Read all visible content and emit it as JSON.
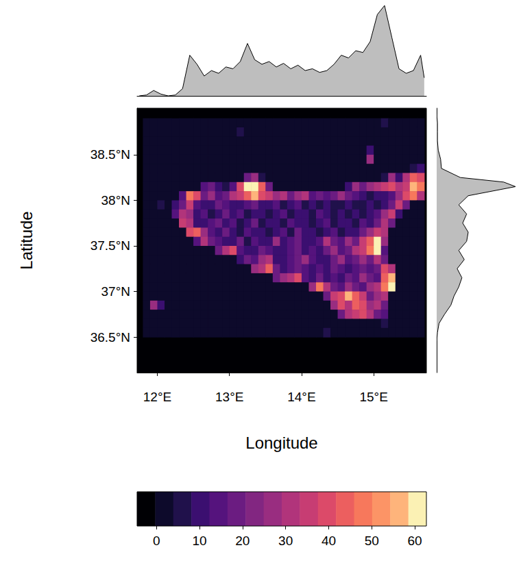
{
  "chart_data": {
    "type": "heatmap",
    "xlabel": "Longitude",
    "ylabel": "Latitude",
    "xlim": [
      11.72,
      15.73
    ],
    "ylim": [
      36.11,
      39.01
    ],
    "xticks": [
      {
        "value": 12,
        "label": "12°E"
      },
      {
        "value": 13,
        "label": "13°E"
      },
      {
        "value": 14,
        "label": "14°E"
      },
      {
        "value": 15,
        "label": "15°E"
      }
    ],
    "yticks": [
      {
        "value": 36.5,
        "label": "36.5°N"
      },
      {
        "value": 37,
        "label": "37°N"
      },
      {
        "value": 37.5,
        "label": "37.5°N"
      },
      {
        "value": 38,
        "label": "38°N"
      },
      {
        "value": 38.5,
        "label": "38.5°N"
      }
    ],
    "x": [
      11.85,
      11.95,
      12.05,
      12.15,
      12.25,
      12.35,
      12.45,
      12.55,
      12.65,
      12.75,
      12.85,
      12.95,
      13.05,
      13.15,
      13.25,
      13.35,
      13.45,
      13.55,
      13.65,
      13.75,
      13.85,
      13.95,
      14.05,
      14.15,
      14.25,
      14.35,
      14.45,
      14.55,
      14.65,
      14.75,
      14.85,
      14.95,
      15.05,
      15.15,
      15.25,
      15.35,
      15.45,
      15.55,
      15.65
    ],
    "y": [
      38.85,
      38.75,
      38.65,
      38.55,
      38.45,
      38.35,
      38.25,
      38.15,
      38.05,
      37.95,
      37.85,
      37.75,
      37.65,
      37.55,
      37.45,
      37.35,
      37.25,
      37.15,
      37.05,
      36.95,
      36.85,
      36.75,
      36.65,
      36.55
    ],
    "cells": [
      [
        0,
        0,
        0,
        0,
        0,
        0,
        0,
        0,
        0,
        0,
        0,
        0,
        0,
        0,
        0,
        0,
        0,
        0,
        0,
        0,
        0,
        0,
        0,
        0,
        0,
        0,
        0,
        0,
        0,
        0,
        0,
        0,
        0,
        6,
        0,
        0,
        0,
        0,
        0
      ],
      [
        0,
        0,
        0,
        0,
        0,
        0,
        0,
        0,
        0,
        0,
        0,
        0,
        0,
        8,
        0,
        0,
        0,
        0,
        0,
        0,
        0,
        0,
        0,
        0,
        0,
        0,
        0,
        0,
        0,
        0,
        0,
        0,
        0,
        0,
        0,
        0,
        0,
        0,
        0
      ],
      [
        0,
        0,
        0,
        0,
        0,
        0,
        0,
        0,
        0,
        0,
        0,
        0,
        0,
        0,
        0,
        0,
        0,
        0,
        0,
        0,
        0,
        0,
        0,
        0,
        0,
        0,
        0,
        0,
        0,
        0,
        0,
        0,
        0,
        0,
        0,
        0,
        0,
        0,
        0
      ],
      [
        0,
        0,
        0,
        0,
        0,
        0,
        0,
        0,
        0,
        0,
        0,
        0,
        0,
        0,
        0,
        0,
        0,
        0,
        0,
        0,
        0,
        0,
        0,
        0,
        0,
        0,
        0,
        0,
        0,
        0,
        0,
        10,
        0,
        0,
        0,
        0,
        0,
        0,
        0
      ],
      [
        0,
        0,
        0,
        0,
        0,
        0,
        0,
        0,
        0,
        0,
        0,
        0,
        0,
        0,
        0,
        0,
        0,
        0,
        0,
        0,
        0,
        0,
        0,
        0,
        0,
        0,
        0,
        0,
        0,
        0,
        0,
        25,
        0,
        0,
        0,
        0,
        0,
        0,
        0
      ],
      [
        0,
        0,
        0,
        0,
        0,
        0,
        0,
        0,
        0,
        0,
        0,
        0,
        0,
        0,
        0,
        0,
        0,
        0,
        0,
        0,
        0,
        0,
        0,
        0,
        0,
        0,
        0,
        0,
        0,
        0,
        0,
        0,
        0,
        0,
        0,
        0,
        0,
        6,
        12
      ],
      [
        0,
        0,
        0,
        0,
        0,
        0,
        0,
        0,
        0,
        0,
        0,
        0,
        0,
        0,
        20,
        25,
        8,
        0,
        0,
        0,
        0,
        0,
        0,
        0,
        0,
        0,
        0,
        0,
        0,
        0,
        0,
        0,
        0,
        8,
        25,
        10,
        30,
        45,
        40
      ],
      [
        0,
        0,
        0,
        0,
        0,
        0,
        0,
        0,
        15,
        20,
        10,
        5,
        15,
        40,
        60,
        65,
        45,
        20,
        0,
        0,
        0,
        0,
        0,
        0,
        0,
        0,
        0,
        0,
        10,
        25,
        20,
        25,
        30,
        35,
        40,
        30,
        35,
        55,
        50
      ],
      [
        0,
        0,
        0,
        0,
        0,
        15,
        50,
        40,
        20,
        25,
        15,
        20,
        30,
        35,
        45,
        55,
        40,
        35,
        25,
        30,
        20,
        25,
        30,
        15,
        20,
        15,
        20,
        25,
        20,
        15,
        10,
        8,
        12,
        10,
        15,
        25,
        40,
        50,
        30
      ],
      [
        0,
        0,
        5,
        0,
        10,
        20,
        35,
        15,
        10,
        12,
        20,
        15,
        12,
        10,
        15,
        20,
        12,
        10,
        15,
        8,
        12,
        15,
        8,
        10,
        8,
        10,
        6,
        8,
        10,
        8,
        6,
        10,
        8,
        10,
        20,
        35,
        20,
        0,
        0
      ],
      [
        0,
        0,
        0,
        0,
        15,
        30,
        25,
        10,
        15,
        8,
        12,
        20,
        10,
        15,
        8,
        10,
        12,
        6,
        10,
        15,
        8,
        10,
        12,
        8,
        15,
        10,
        8,
        12,
        6,
        10,
        8,
        12,
        15,
        25,
        35,
        10,
        0,
        0,
        0
      ],
      [
        0,
        0,
        0,
        0,
        0,
        35,
        30,
        12,
        10,
        15,
        20,
        10,
        15,
        8,
        10,
        20,
        8,
        12,
        10,
        8,
        15,
        10,
        12,
        6,
        10,
        15,
        8,
        10,
        12,
        8,
        15,
        10,
        20,
        30,
        20,
        0,
        0,
        0,
        0
      ],
      [
        0,
        0,
        0,
        0,
        0,
        0,
        40,
        45,
        25,
        15,
        10,
        20,
        12,
        8,
        15,
        10,
        12,
        8,
        10,
        15,
        8,
        20,
        10,
        12,
        8,
        10,
        15,
        8,
        10,
        12,
        20,
        25,
        35,
        30,
        0,
        0,
        0,
        0,
        0
      ],
      [
        0,
        0,
        0,
        0,
        0,
        0,
        0,
        15,
        30,
        20,
        15,
        10,
        12,
        20,
        8,
        15,
        10,
        12,
        25,
        10,
        15,
        20,
        12,
        10,
        15,
        30,
        20,
        15,
        25,
        20,
        35,
        45,
        60,
        25,
        0,
        0,
        0,
        0,
        0
      ],
      [
        0,
        0,
        0,
        0,
        0,
        0,
        0,
        0,
        0,
        0,
        20,
        30,
        40,
        15,
        12,
        10,
        20,
        15,
        10,
        12,
        15,
        20,
        10,
        15,
        12,
        20,
        25,
        15,
        20,
        30,
        35,
        50,
        65,
        15,
        0,
        0,
        0,
        0,
        0
      ],
      [
        0,
        0,
        0,
        0,
        0,
        0,
        0,
        0,
        0,
        0,
        0,
        0,
        0,
        10,
        20,
        15,
        25,
        30,
        12,
        10,
        15,
        20,
        25,
        15,
        12,
        10,
        20,
        25,
        15,
        20,
        25,
        20,
        30,
        20,
        0,
        0,
        0,
        0,
        0
      ],
      [
        0,
        0,
        0,
        0,
        0,
        0,
        0,
        0,
        0,
        0,
        0,
        0,
        0,
        0,
        0,
        25,
        30,
        45,
        20,
        12,
        15,
        20,
        15,
        10,
        15,
        12,
        20,
        15,
        10,
        15,
        20,
        15,
        20,
        40,
        30,
        0,
        0,
        0,
        0
      ],
      [
        0,
        0,
        0,
        0,
        0,
        0,
        0,
        0,
        0,
        0,
        0,
        0,
        0,
        0,
        0,
        0,
        0,
        0,
        20,
        25,
        30,
        40,
        15,
        10,
        20,
        12,
        15,
        10,
        20,
        15,
        25,
        20,
        15,
        45,
        55,
        0,
        0,
        0,
        0
      ],
      [
        0,
        0,
        0,
        0,
        0,
        0,
        0,
        0,
        0,
        0,
        0,
        0,
        0,
        0,
        0,
        0,
        0,
        0,
        0,
        0,
        0,
        0,
        0,
        25,
        50,
        30,
        20,
        15,
        25,
        20,
        15,
        25,
        30,
        50,
        60,
        0,
        0,
        0,
        0
      ],
      [
        0,
        0,
        0,
        0,
        0,
        0,
        0,
        0,
        0,
        0,
        0,
        0,
        0,
        0,
        0,
        0,
        0,
        0,
        0,
        0,
        0,
        0,
        0,
        0,
        0,
        20,
        35,
        40,
        55,
        45,
        35,
        20,
        25,
        30,
        0,
        0,
        0,
        0,
        0
      ],
      [
        0,
        25,
        10,
        0,
        0,
        0,
        0,
        0,
        0,
        0,
        0,
        0,
        0,
        0,
        0,
        0,
        0,
        0,
        0,
        0,
        0,
        0,
        0,
        0,
        0,
        0,
        25,
        40,
        30,
        45,
        40,
        25,
        30,
        20,
        0,
        0,
        0,
        0,
        0
      ],
      [
        0,
        0,
        0,
        0,
        0,
        0,
        0,
        0,
        0,
        0,
        0,
        0,
        0,
        0,
        0,
        0,
        0,
        0,
        0,
        0,
        0,
        0,
        0,
        0,
        0,
        0,
        0,
        20,
        30,
        35,
        40,
        30,
        20,
        15,
        0,
        0,
        0,
        0,
        0
      ],
      [
        0,
        0,
        0,
        0,
        0,
        0,
        0,
        0,
        0,
        0,
        0,
        0,
        0,
        0,
        0,
        0,
        0,
        0,
        0,
        0,
        0,
        0,
        0,
        0,
        0,
        0,
        0,
        0,
        0,
        0,
        0,
        0,
        0,
        8,
        0,
        0,
        0,
        0,
        0
      ],
      [
        0,
        0,
        0,
        0,
        0,
        0,
        0,
        0,
        0,
        0,
        0,
        0,
        0,
        0,
        0,
        0,
        0,
        0,
        0,
        0,
        0,
        0,
        0,
        0,
        0,
        6,
        0,
        0,
        0,
        0,
        0,
        0,
        0,
        0,
        0,
        0,
        0,
        0,
        0
      ]
    ],
    "colorbar": {
      "breaks": [
        -4.5,
        -0.3,
        3.9,
        8.1,
        12.3,
        16.5,
        20.7,
        24.9,
        29.1,
        33.3,
        37.5,
        41.7,
        45.9,
        50.1,
        54.3,
        58.5,
        62.7
      ],
      "colors": [
        "#000004",
        "#0d0a2b",
        "#20114b",
        "#3b0f70",
        "#55137d",
        "#6b1c81",
        "#822681",
        "#992d80",
        "#b1347b",
        "#c73d73",
        "#dc4a69",
        "#ec5f5f",
        "#f7785c",
        "#fc9466",
        "#feb47b",
        "#fbf1b4"
      ],
      "ticks": [
        0,
        10,
        20,
        30,
        40,
        50,
        60
      ]
    },
    "lon_profile": {
      "x": [
        11.75,
        11.85,
        11.95,
        12.05,
        12.15,
        12.25,
        12.35,
        12.45,
        12.55,
        12.65,
        12.75,
        12.85,
        12.95,
        13.05,
        13.15,
        13.25,
        13.35,
        13.45,
        13.55,
        13.65,
        13.75,
        13.85,
        13.95,
        14.05,
        14.15,
        14.25,
        14.35,
        14.45,
        14.55,
        14.65,
        14.75,
        14.85,
        14.95,
        15.05,
        15.15,
        15.25,
        15.35,
        15.45,
        15.55,
        15.65,
        15.7
      ],
      "values": [
        0,
        1,
        6,
        2,
        0,
        1,
        8,
        45,
        35,
        22,
        28,
        25,
        32,
        30,
        38,
        58,
        40,
        35,
        38,
        32,
        36,
        30,
        34,
        28,
        30,
        26,
        28,
        35,
        45,
        42,
        50,
        48,
        60,
        90,
        100,
        65,
        30,
        25,
        28,
        45,
        20
      ]
    },
    "lat_profile": {
      "y": [
        36.15,
        36.25,
        36.35,
        36.45,
        36.55,
        36.65,
        36.75,
        36.85,
        36.95,
        37.05,
        37.15,
        37.25,
        37.35,
        37.45,
        37.55,
        37.65,
        37.75,
        37.85,
        37.95,
        38.05,
        38.15,
        38.2,
        38.25,
        38.35,
        38.45,
        38.55,
        38.65,
        38.75,
        38.85,
        38.95
      ],
      "values": [
        0,
        0,
        0,
        0,
        1,
        3,
        10,
        18,
        22,
        28,
        32,
        26,
        35,
        28,
        38,
        40,
        33,
        38,
        28,
        40,
        100,
        85,
        30,
        6,
        5,
        2,
        1,
        1,
        1,
        0
      ]
    }
  }
}
